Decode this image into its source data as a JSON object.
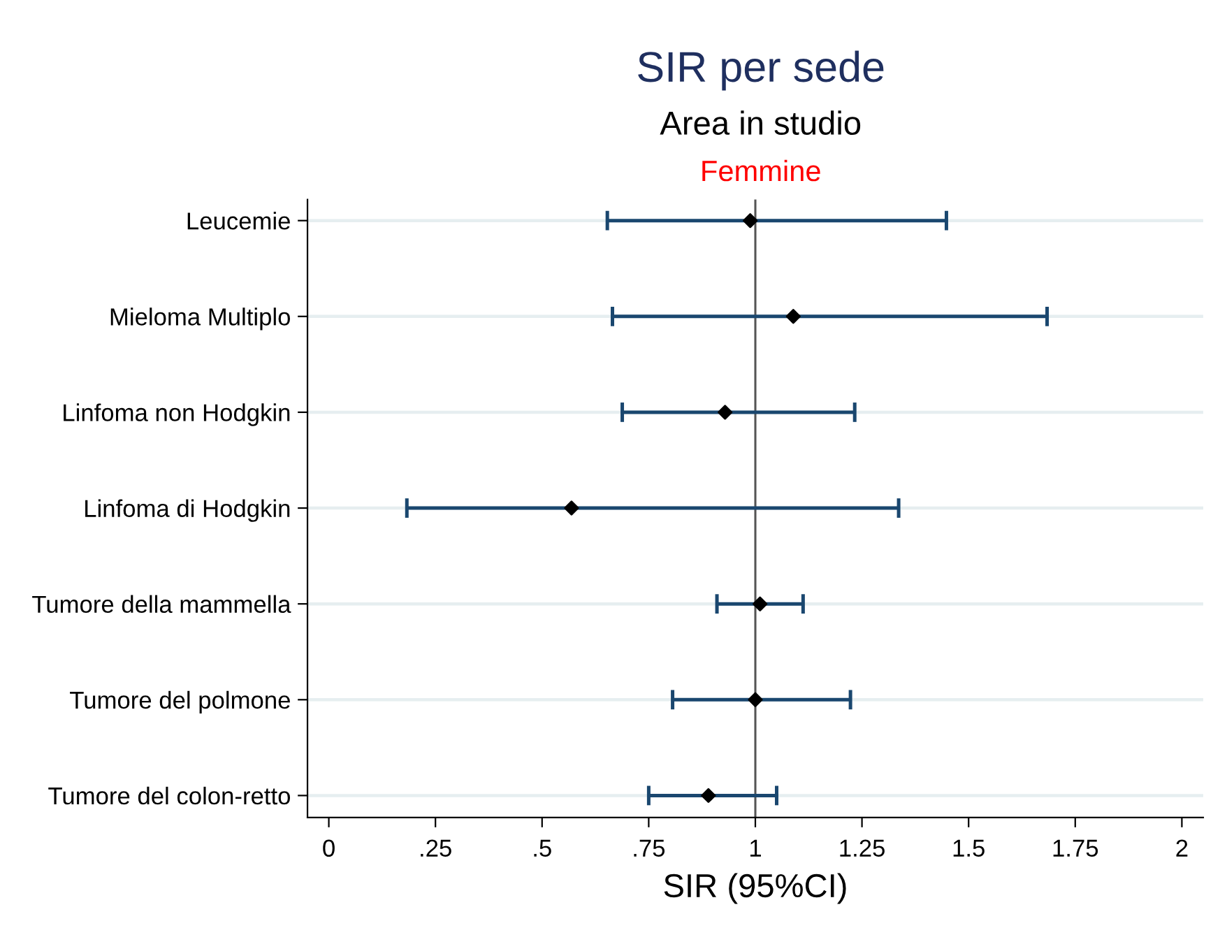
{
  "chart_data": {
    "type": "scatter",
    "title": "SIR per sede",
    "subtitle": "Area in studio",
    "annotations": [
      "Femmine"
    ],
    "xlabel": "SIR (95%CI)",
    "orientation": "horizontal",
    "categories": [
      "Leucemie",
      "Mieloma Multiplo",
      "Linfoma non Hodgkin",
      "Linfoma di Hodgkin",
      "Tumore della mammella",
      "Tumore del polmone",
      "Tumore del colon-retto"
    ],
    "series": [
      {
        "color": "#000000",
        "values": [
          0.988,
          1.089,
          0.929,
          0.569,
          1.011,
          1.0,
          0.89
        ],
        "errors": [
          [
            0.653,
            1.448
          ],
          [
            0.665,
            1.684
          ],
          [
            0.688,
            1.233
          ],
          [
            0.183,
            1.336
          ],
          [
            0.91,
            1.112
          ],
          [
            0.806,
            1.223
          ],
          [
            0.75,
            1.05
          ]
        ]
      }
    ],
    "xlim": [
      -0.05,
      2.05
    ],
    "xticks": [
      0,
      {
        "value": 0.25,
        "label": ".25"
      },
      {
        "value": 0.5,
        "label": ".5"
      },
      {
        "value": 0.75,
        "label": ".75"
      },
      1,
      1.25,
      1.5,
      1.75,
      2
    ],
    "ref_lines": [
      {
        "axis": "x",
        "value": 1,
        "color": "#555555"
      }
    ],
    "grid": "y",
    "marker": "diamond"
  }
}
